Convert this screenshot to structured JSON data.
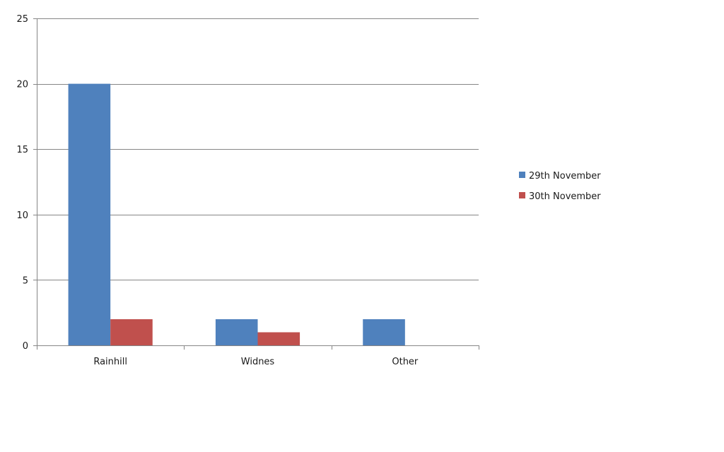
{
  "chart_data": {
    "type": "bar",
    "categories": [
      "Rainhill",
      "Widnes",
      "Other"
    ],
    "series": [
      {
        "name": "29th November",
        "values": [
          20,
          2,
          2
        ],
        "color": "#4F81BD"
      },
      {
        "name": "30th November",
        "values": [
          2,
          1,
          0
        ],
        "color": "#C0504D"
      }
    ],
    "ylim": [
      0,
      25
    ],
    "yticks": [
      0,
      5,
      10,
      15,
      20,
      25
    ],
    "grid": true,
    "legend": "right"
  }
}
